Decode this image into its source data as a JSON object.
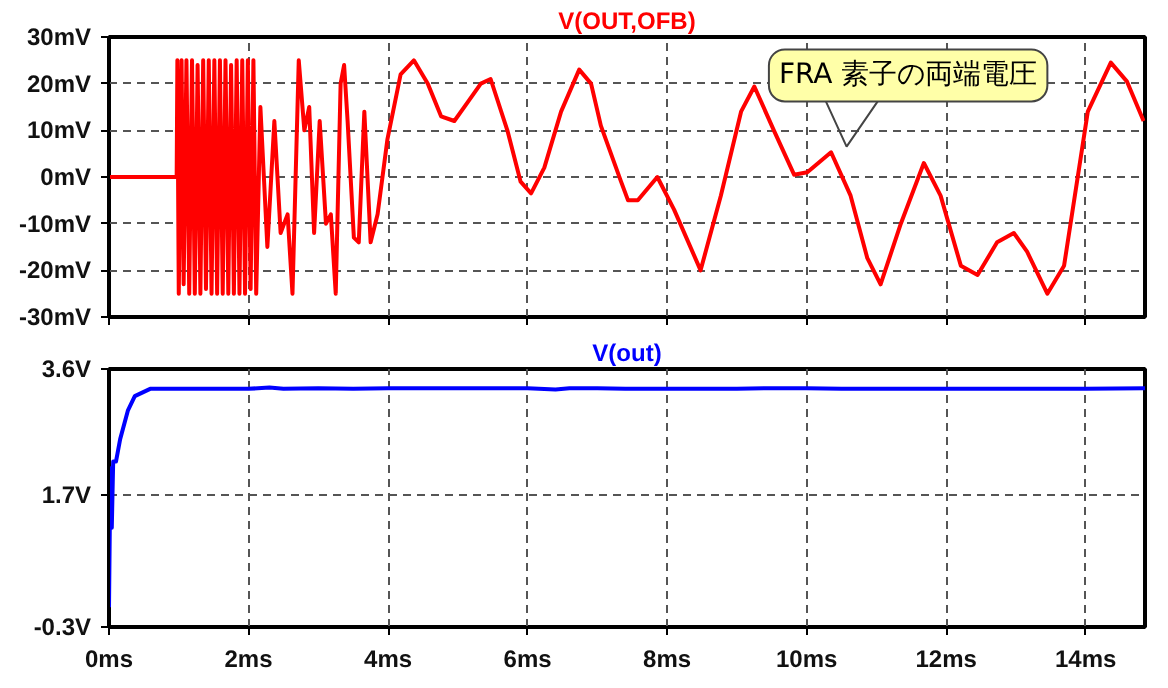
{
  "chart_data": [
    {
      "type": "line",
      "xlim": [
        0,
        14.85
      ],
      "ylim": [
        -30,
        30
      ],
      "xticks": [
        {
          "value": 0,
          "label": null
        },
        {
          "value": 2,
          "label": null
        },
        {
          "value": 4,
          "label": null
        },
        {
          "value": 6,
          "label": null
        },
        {
          "value": 8,
          "label": null
        },
        {
          "value": 10,
          "label": null
        },
        {
          "value": 12,
          "label": null
        },
        {
          "value": 14,
          "label": null
        }
      ],
      "yticks": [
        {
          "value": -30,
          "label": "-30mV"
        },
        {
          "value": -20,
          "label": "-20mV"
        },
        {
          "value": -10,
          "label": "-10mV"
        },
        {
          "value": 0,
          "label": "0mV"
        },
        {
          "value": 10,
          "label": "10mV"
        },
        {
          "value": 20,
          "label": "20mV"
        },
        {
          "value": 30,
          "label": "30mV"
        }
      ],
      "tick_labels": "y",
      "grid": true,
      "line_style": "solid",
      "marker": "none",
      "annotations": [
        {
          "text": "FRA 素子の両端電圧",
          "x": 10.35,
          "y": 5.3
        }
      ],
      "series": [
        {
          "name": "V(OUT,OFB)",
          "color": "#ff0000",
          "x": [
            0,
            0.97,
            0.98,
            1.0,
            1.04,
            1.07,
            1.11,
            1.15,
            1.19,
            1.23,
            1.27,
            1.31,
            1.35,
            1.39,
            1.43,
            1.47,
            1.51,
            1.55,
            1.59,
            1.63,
            1.67,
            1.71,
            1.75,
            1.79,
            1.83,
            1.87,
            1.91,
            1.95,
            1.99,
            2.03,
            2.07,
            2.11,
            2.17,
            2.27,
            2.37,
            2.46,
            2.56,
            2.63,
            2.72,
            2.8,
            2.87,
            2.94,
            3.02,
            3.11,
            3.18,
            3.25,
            3.32,
            3.37,
            3.42,
            3.51,
            3.58,
            3.66,
            3.75,
            3.85,
            3.99,
            4.18,
            4.37,
            4.57,
            4.76,
            4.95,
            5.14,
            5.33,
            5.47,
            5.71,
            5.9,
            6.05,
            6.24,
            6.48,
            6.74,
            6.91,
            7.05,
            7.34,
            7.44,
            7.58,
            7.86,
            8.1,
            8.48,
            8.77,
            9.06,
            9.25,
            9.53,
            9.82,
            10.01,
            10.35,
            10.63,
            10.87,
            11.06,
            11.35,
            11.68,
            11.92,
            12.21,
            12.45,
            12.73,
            12.97,
            13.16,
            13.45,
            13.69,
            14.03,
            14.36,
            14.59,
            14.83
          ],
          "values": [
            0,
            0,
            25,
            -25,
            25,
            -23,
            25,
            -25,
            25,
            -25,
            24,
            -25,
            25,
            -24,
            25,
            -25,
            25,
            -25,
            25,
            -25,
            25,
            -25,
            24,
            -25,
            25,
            -25,
            25,
            -25,
            25,
            -24,
            25,
            -25,
            15,
            -15,
            12,
            -12,
            -8,
            -25,
            25,
            10,
            15,
            -12,
            12,
            -10,
            -8,
            -25,
            20,
            24,
            12,
            -13,
            -14,
            14,
            -14,
            -8,
            8,
            22,
            25,
            20,
            13,
            12,
            16,
            20,
            21,
            10,
            -1,
            -3.5,
            2,
            14,
            23,
            20,
            11,
            -1,
            -5,
            -5,
            0,
            -7,
            -20,
            -4,
            14,
            19.4,
            10,
            0.5,
            1,
            5.3,
            -4,
            -17.4,
            -23,
            -10,
            3,
            -4,
            -19,
            -21,
            -14,
            -12,
            -16,
            -25,
            -19,
            14,
            24.5,
            20.5,
            12
          ]
        }
      ]
    },
    {
      "type": "line",
      "xlim": [
        0,
        14.85
      ],
      "ylim": [
        -0.3,
        3.6
      ],
      "xticks": [
        {
          "value": 0,
          "label": "0ms"
        },
        {
          "value": 2,
          "label": "2ms"
        },
        {
          "value": 4,
          "label": "4ms"
        },
        {
          "value": 6,
          "label": "6ms"
        },
        {
          "value": 8,
          "label": "8ms"
        },
        {
          "value": 10,
          "label": "10ms"
        },
        {
          "value": 12,
          "label": "12ms"
        },
        {
          "value": 14,
          "label": "14ms"
        }
      ],
      "yticks": [
        {
          "value": -0.3,
          "label": "-0.3V"
        },
        {
          "value": 1.7,
          "label": "1.7V"
        },
        {
          "value": 3.6,
          "label": "3.6V"
        }
      ],
      "grid": true,
      "line_style": "solid",
      "marker": "none",
      "series": [
        {
          "name": "V(out)",
          "color": "#0000ff",
          "x": [
            0,
            0.02,
            0.04,
            0.06,
            0.1,
            0.16,
            0.27,
            0.37,
            0.59,
            1,
            2,
            2.3,
            2.5,
            3,
            3.5,
            4,
            5,
            6,
            6.4,
            6.6,
            7,
            7.4,
            8,
            9,
            9.5,
            10,
            10.5,
            11,
            12,
            13,
            14,
            14.85
          ],
          "values": [
            0,
            2.1,
            1.2,
            2.2,
            2.2,
            2.54,
            2.97,
            3.19,
            3.3,
            3.3,
            3.3,
            3.32,
            3.3,
            3.31,
            3.3,
            3.31,
            3.31,
            3.31,
            3.29,
            3.31,
            3.31,
            3.3,
            3.3,
            3.3,
            3.31,
            3.31,
            3.3,
            3.3,
            3.3,
            3.3,
            3.3,
            3.31
          ]
        }
      ]
    }
  ]
}
